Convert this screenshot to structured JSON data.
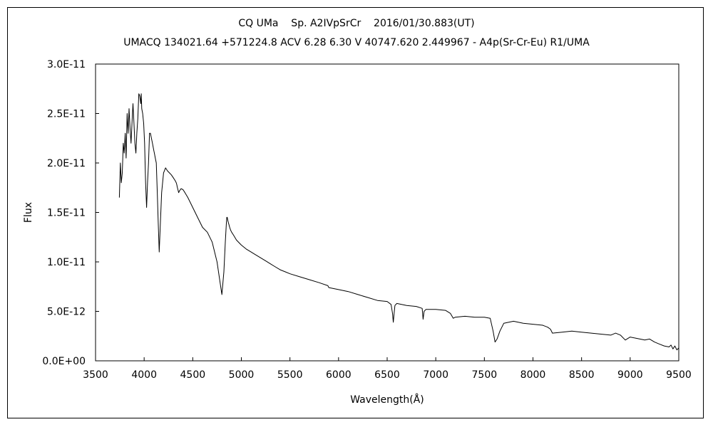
{
  "chart_data": {
    "type": "line",
    "title": "CQ UMa    Sp. A2IVpSrCr    2016/01/30.883(UT)",
    "subtitle": "UMACQ 134021.64 +571224.8 ACV 6.28 6.30 V 40747.620 2.449967 - A4p(Sr-Cr-Eu) R1/UMA",
    "xlabel": "Wavelength(Å)",
    "ylabel": "Flux",
    "xlim": [
      3500,
      9500
    ],
    "ylim": [
      0,
      3e-11
    ],
    "x_ticks": [
      "3500",
      "4000",
      "4500",
      "5000",
      "5500",
      "6000",
      "6500",
      "7000",
      "7500",
      "8000",
      "8500",
      "9000",
      "9500"
    ],
    "y_ticks": [
      "0.0E+00",
      "5.0E-12",
      "1.0E-11",
      "1.5E-11",
      "2.0E-11",
      "2.5E-11",
      "3.0E-11"
    ],
    "x_tick_values": [
      3500,
      4000,
      4500,
      5000,
      5500,
      6000,
      6500,
      7000,
      7500,
      8000,
      8500,
      9000,
      9500
    ],
    "y_tick_values": [
      0,
      5e-12,
      1e-11,
      1.5e-11,
      2e-11,
      2.5e-11,
      3e-11
    ],
    "grid": false,
    "series": [
      {
        "color": "#000000",
        "x": [
          3745,
          3755,
          3765,
          3775,
          3785,
          3795,
          3805,
          3815,
          3825,
          3835,
          3845,
          3855,
          3865,
          3875,
          3885,
          3895,
          3905,
          3915,
          3925,
          3935,
          3945,
          3955,
          3965,
          3970,
          3975,
          3985,
          3995,
          4005,
          4015,
          4025,
          4035,
          4045,
          4055,
          4065,
          4075,
          4085,
          4095,
          4101,
          4105,
          4115,
          4125,
          4135,
          4145,
          4155,
          4165,
          4180,
          4200,
          4220,
          4240,
          4260,
          4280,
          4300,
          4320,
          4330,
          4336,
          4340,
          4345,
          4350,
          4355,
          4365,
          4380,
          4400,
          4420,
          4450,
          4500,
          4550,
          4600,
          4650,
          4700,
          4750,
          4780,
          4800,
          4820,
          4835,
          4845,
          4850,
          4855,
          4861,
          4866,
          4872,
          4880,
          4890,
          4900,
          4920,
          4950,
          5000,
          5050,
          5100,
          5150,
          5200,
          5250,
          5300,
          5350,
          5400,
          5450,
          5500,
          5600,
          5700,
          5800,
          5890,
          5900,
          6000,
          6100,
          6200,
          6300,
          6400,
          6500,
          6540,
          6555,
          6563,
          6570,
          6580,
          6600,
          6700,
          6800,
          6860,
          6870,
          6880,
          6900,
          7000,
          7100,
          7150,
          7180,
          7200,
          7300,
          7400,
          7500,
          7560,
          7590,
          7610,
          7630,
          7660,
          7700,
          7800,
          7900,
          8000,
          8100,
          8150,
          8180,
          8200,
          8300,
          8400,
          8500,
          8600,
          8700,
          8800,
          8850,
          8900,
          8950,
          9000,
          9050,
          9100,
          9150,
          9200,
          9250,
          9300,
          9350,
          9400,
          9420,
          9440,
          9460,
          9480,
          9500
        ],
        "y": [
          1.65e-11,
          2e-11,
          1.8e-11,
          1.9e-11,
          2.2e-11,
          2.1e-11,
          2.3e-11,
          2.05e-11,
          2.5e-11,
          2.3e-11,
          2.55e-11,
          2.35e-11,
          2.2e-11,
          2.4e-11,
          2.6e-11,
          2.4e-11,
          2.2e-11,
          2.1e-11,
          2.3e-11,
          2.45e-11,
          2.7e-11,
          2.68e-11,
          2.6e-11,
          2.7e-11,
          2.55e-11,
          2.5e-11,
          2.4e-11,
          2.2e-11,
          1.8e-11,
          1.55e-11,
          1.8e-11,
          2e-11,
          2.3e-11,
          2.3e-11,
          2.25e-11,
          2.2e-11,
          2.15e-11,
          2.12e-11,
          2.1e-11,
          2.05e-11,
          2e-11,
          1.7e-11,
          1.4e-11,
          1.1e-11,
          1.35e-11,
          1.7e-11,
          1.9e-11,
          1.95e-11,
          1.92e-11,
          1.9e-11,
          1.88e-11,
          1.85e-11,
          1.82e-11,
          1.8e-11,
          1.78e-11,
          1.76e-11,
          1.74e-11,
          1.72e-11,
          1.7e-11,
          1.72e-11,
          1.74e-11,
          1.73e-11,
          1.7e-11,
          1.65e-11,
          1.55e-11,
          1.45e-11,
          1.35e-11,
          1.3e-11,
          1.2e-11,
          1e-11,
          8e-12,
          6.7e-12,
          9e-12,
          1.2e-11,
          1.38e-11,
          1.45e-11,
          1.45e-11,
          1.42e-11,
          1.4e-11,
          1.38e-11,
          1.35e-11,
          1.32e-11,
          1.3e-11,
          1.27e-11,
          1.22e-11,
          1.17e-11,
          1.13e-11,
          1.1e-11,
          1.07e-11,
          1.04e-11,
          1.01e-11,
          9.8e-12,
          9.5e-12,
          9.2e-12,
          9e-12,
          8.8e-12,
          8.5e-12,
          8.2e-12,
          7.9e-12,
          7.6e-12,
          7.4e-12,
          7.2e-12,
          7e-12,
          6.7e-12,
          6.4e-12,
          6.1e-12,
          6e-12,
          5.7e-12,
          4.8e-12,
          3.9e-12,
          4.6e-12,
          5.6e-12,
          5.8e-12,
          5.6e-12,
          5.5e-12,
          5.3e-12,
          4.2e-12,
          5e-12,
          5.2e-12,
          5.2e-12,
          5.1e-12,
          4.8e-12,
          4.3e-12,
          4.4e-12,
          4.5e-12,
          4.4e-12,
          4.4e-12,
          4.3e-12,
          3e-12,
          1.9e-12,
          2.2e-12,
          3e-12,
          3.8e-12,
          4e-12,
          3.8e-12,
          3.7e-12,
          3.6e-12,
          3.4e-12,
          3.2e-12,
          2.8e-12,
          2.9e-12,
          3e-12,
          2.9e-12,
          2.8e-12,
          2.7e-12,
          2.6e-12,
          2.8e-12,
          2.6e-12,
          2.1e-12,
          2.4e-12,
          2.3e-12,
          2.2e-12,
          2.1e-12,
          2.2e-12,
          1.9e-12,
          1.7e-12,
          1.5e-12,
          1.4e-12,
          1.6e-12,
          1.2e-12,
          1.5e-12,
          1.1e-12,
          1.3e-12
        ]
      }
    ]
  }
}
